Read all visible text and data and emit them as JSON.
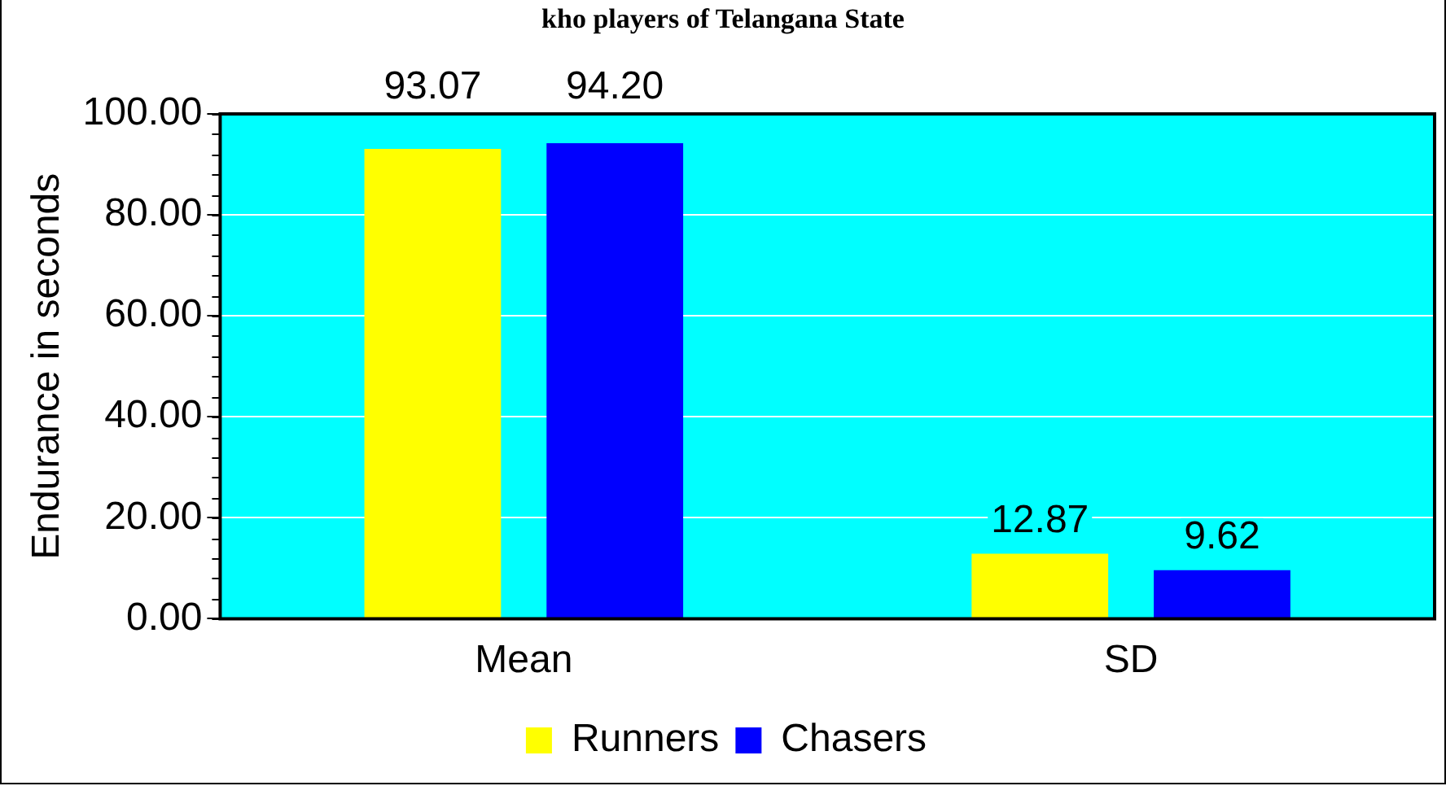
{
  "chart_data": {
    "type": "bar",
    "title": "kho players of Telangana State",
    "ylabel": "Endurance in seconds",
    "categories": [
      "Mean",
      "SD"
    ],
    "series": [
      {
        "name": "Runners",
        "color": "#ffff00",
        "values": [
          93.07,
          12.87
        ],
        "value_labels": [
          "93.07",
          "12.87"
        ]
      },
      {
        "name": "Chasers",
        "color": "#0000ff",
        "values": [
          94.2,
          9.62
        ],
        "value_labels": [
          "94.20",
          "9.62"
        ]
      }
    ],
    "ylim": [
      0,
      100
    ],
    "yticks": [
      {
        "value": 0,
        "label": "0.00"
      },
      {
        "value": 20,
        "label": "20.00"
      },
      {
        "value": 40,
        "label": "40.00"
      },
      {
        "value": 60,
        "label": "60.00"
      },
      {
        "value": 80,
        "label": "80.00"
      },
      {
        "value": 100,
        "label": "100.00"
      }
    ],
    "grid": "y",
    "legend": "bottom"
  }
}
